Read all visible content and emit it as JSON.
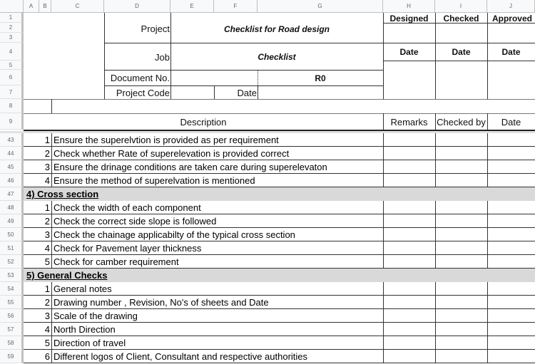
{
  "columns": [
    "A",
    "B",
    "C",
    "D",
    "E",
    "F",
    "G",
    "H",
    "I",
    "J"
  ],
  "top_rows": [
    "1",
    "2",
    "3",
    "4",
    "5",
    "6",
    "7",
    "8",
    "9"
  ],
  "header": {
    "project_label": "Project",
    "project_value": "Checklist for Road design",
    "job_label": "Job",
    "job_value": "Checklist",
    "document_no_label": "Document No.",
    "document_no_value": "R0",
    "project_code_label": "Project Code",
    "date_label": "Date",
    "designed": "Designed",
    "checked": "Checked",
    "approved": "Approved",
    "designed_date": "Date",
    "checked_date": "Date",
    "approved_date": "Date"
  },
  "table_header": {
    "description": "Description",
    "remarks": "Remarks",
    "checked_by": "Checked by",
    "date": "Date"
  },
  "rows": [
    {
      "row": "43",
      "num": "1",
      "text": "Ensure the superelvtion is provided as per requirement"
    },
    {
      "row": "44",
      "num": "2",
      "text": "Check whether Rate of superelevation is provided correct"
    },
    {
      "row": "45",
      "num": "3",
      "text": "Ensure the drinage conditions are taken care during superelevaton"
    },
    {
      "row": "46",
      "num": "4",
      "text": "Ensure the method of superelvation is mentioned"
    },
    {
      "row": "47",
      "section": "4) Cross section"
    },
    {
      "row": "48",
      "num": "1",
      "text": "Check the width of each component"
    },
    {
      "row": "49",
      "num": "2",
      "text": "Check the correct side slope is followed"
    },
    {
      "row": "50",
      "num": "3",
      "text": "Check the chainage applicabilty of the typical cross section"
    },
    {
      "row": "51",
      "num": "4",
      "text": "Check for Pavement layer thickness"
    },
    {
      "row": "52",
      "num": "5",
      "text": "Check for camber requirement"
    },
    {
      "row": "53",
      "section": "5) General Checks"
    },
    {
      "row": "54",
      "num": "1",
      "text": "General notes"
    },
    {
      "row": "55",
      "num": "2",
      "text": "Drawing number , Revision, No's of sheets and Date"
    },
    {
      "row": "56",
      "num": "3",
      "text": "Scale of the drawing"
    },
    {
      "row": "57",
      "num": "4",
      "text": "North Direction"
    },
    {
      "row": "58",
      "num": "5",
      "text": "Direction of travel"
    },
    {
      "row": "59",
      "num": "6",
      "text": "Different logos of Client, Consultant and respective authorities"
    }
  ],
  "colors": {
    "section_fill": "#d9d9d9",
    "header_bg": "#f8f9fa"
  }
}
